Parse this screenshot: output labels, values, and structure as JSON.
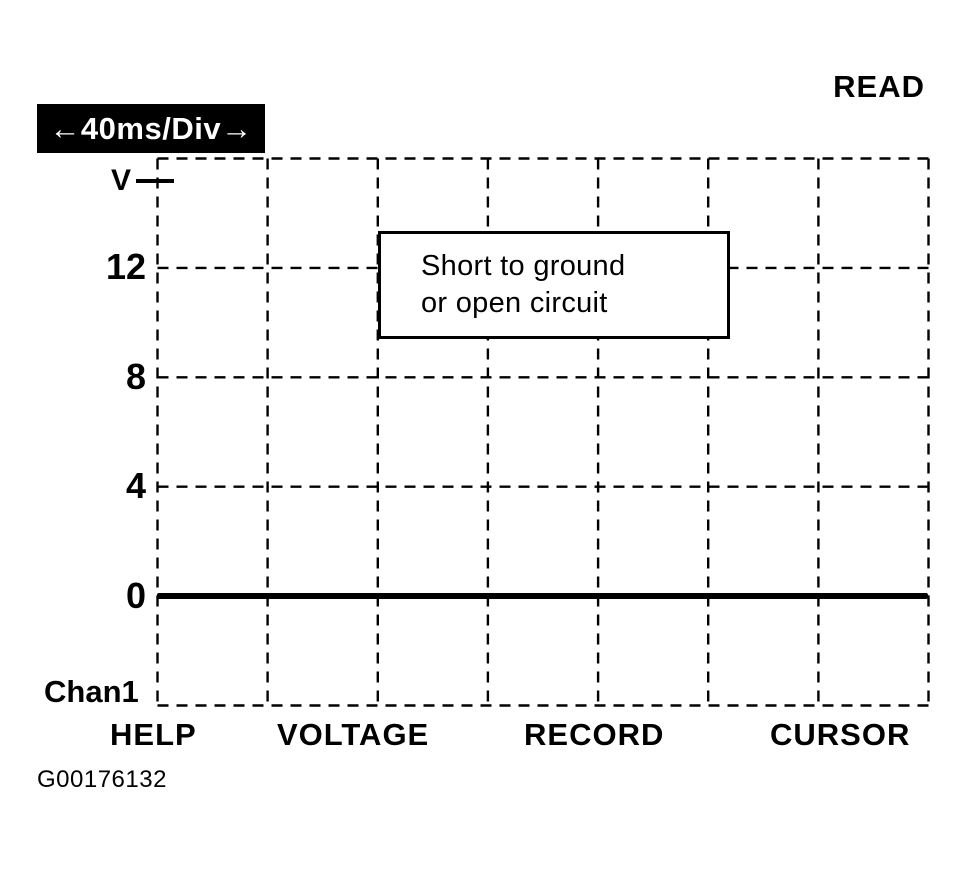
{
  "scope_screen": {
    "read_label": "READ",
    "timebase_label": "←40ms/Div→",
    "y_unit_label": "V",
    "y_ticks": [
      "12",
      "8",
      "4",
      "0"
    ],
    "channel_label": "Chan1",
    "annotation": {
      "line1": "Short to ground",
      "line2": "or open circuit"
    },
    "menu_items": [
      "HELP",
      "VOLTAGE",
      "RECORD",
      "CURSOR"
    ],
    "figure_code": "G00176132",
    "colors": {
      "ink": "#000000",
      "background": "#ffffff",
      "timebase_badge_bg": "#000000",
      "timebase_badge_text": "#ffffff"
    }
  },
  "chart_data": {
    "type": "line",
    "title": "",
    "x_axis": {
      "label": "40ms/Div",
      "ms_per_div": 40,
      "divisions": 7
    },
    "y_axis": {
      "unit": "V",
      "ticks": [
        12,
        8,
        4,
        0
      ],
      "volts_per_div": 4,
      "ylim": [
        -4,
        16
      ],
      "divisions": 5
    },
    "series": [
      {
        "name": "Chan1",
        "style": "thick-solid",
        "values": [
          0,
          0,
          0,
          0,
          0,
          0,
          0,
          0
        ]
      }
    ],
    "grid": "dashed",
    "legend": "none",
    "annotation": "Short to ground or open circuit"
  }
}
